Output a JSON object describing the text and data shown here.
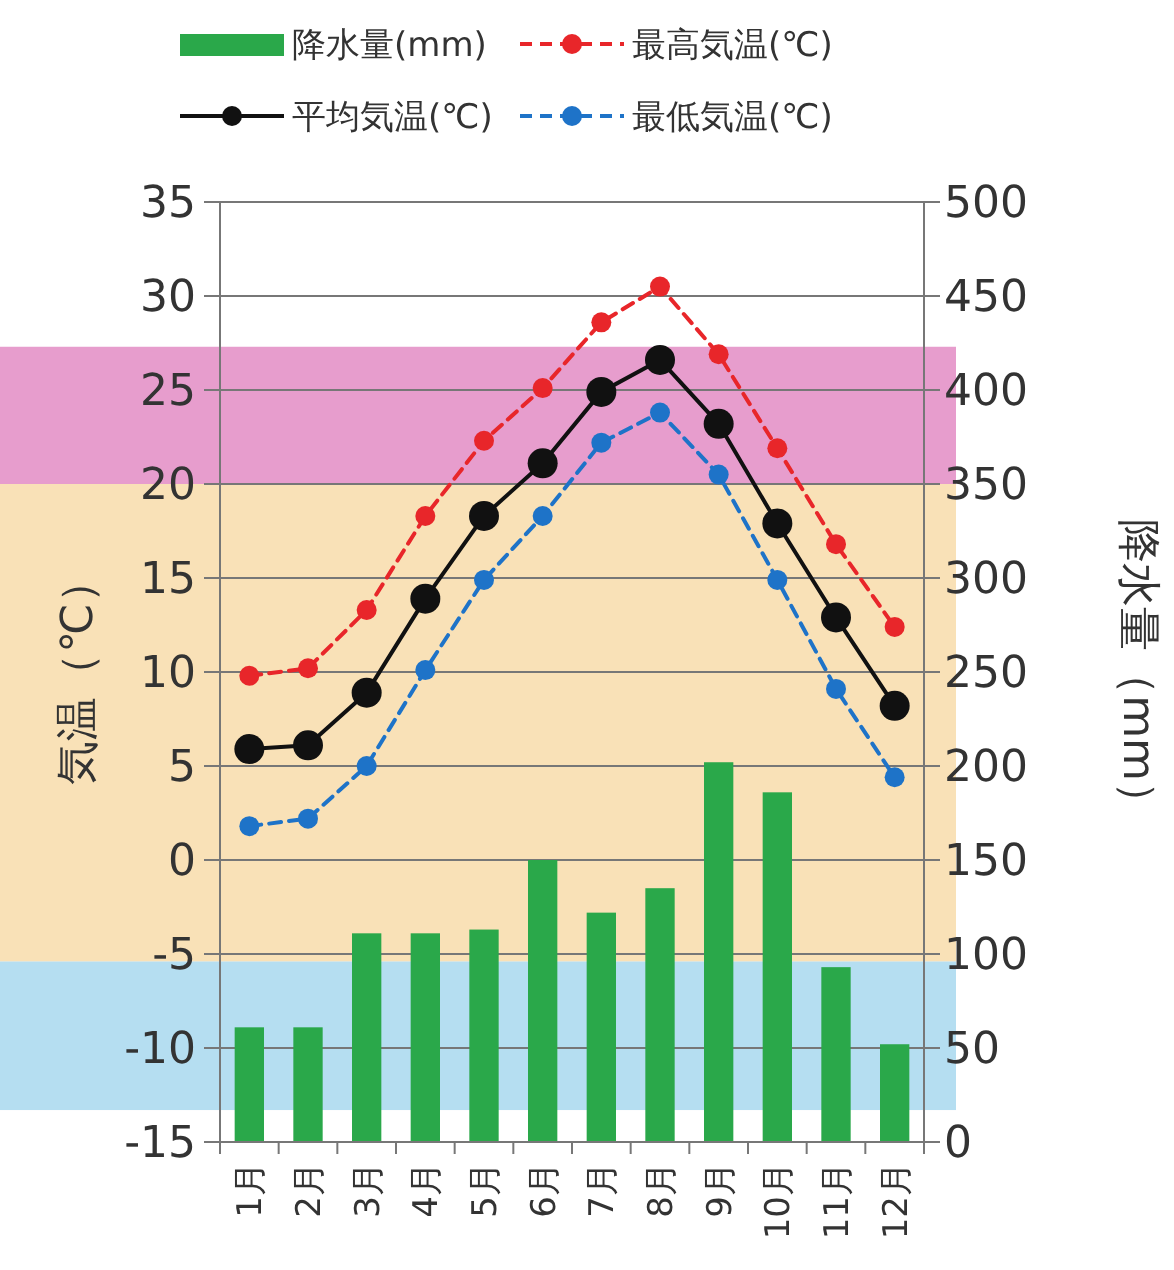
{
  "chart_data": {
    "type": "bar",
    "categories": [
      "1月",
      "2月",
      "3月",
      "4月",
      "5月",
      "6月",
      "7月",
      "8月",
      "9月",
      "10月",
      "11月",
      "12月"
    ],
    "ylabel": "気温（℃）",
    "y2label": "降水量（mm）",
    "ylim": [
      -15,
      35
    ],
    "yticks": [
      -15,
      -10,
      -5,
      0,
      5,
      10,
      15,
      20,
      25,
      30,
      35
    ],
    "y2lim": [
      0,
      500
    ],
    "y2ticks": [
      0,
      50,
      100,
      150,
      200,
      250,
      300,
      350,
      400,
      450,
      500
    ],
    "grid": "y",
    "legend": "top",
    "marker": "circle",
    "bands": [
      {
        "axis": "y",
        "from": 20,
        "to": 27.3,
        "color": "#e38cc4"
      },
      {
        "axis": "y",
        "from": -5.4,
        "to": 20,
        "color": "#f8dcaa"
      },
      {
        "axis": "y",
        "from": -13.3,
        "to": -5.4,
        "color": "#a8d8ee"
      }
    ],
    "series": [
      {
        "name": "降水量(mm)",
        "axis": "y2",
        "color": "#2aa84a",
        "values": [
          61,
          61,
          111,
          111,
          113,
          150,
          122,
          135,
          202,
          186,
          93,
          52
        ]
      },
      {
        "name": "最高気温(℃)",
        "type": "line",
        "color": "#e8262a",
        "line_style": "dashed",
        "values": [
          9.8,
          10.2,
          13.3,
          18.3,
          22.3,
          25.1,
          28.6,
          30.5,
          26.9,
          21.9,
          16.8,
          12.4
        ]
      },
      {
        "name": "平均気温(℃)",
        "type": "line",
        "color": "#111111",
        "line_style": "solid",
        "values": [
          5.9,
          6.1,
          8.9,
          13.9,
          18.3,
          21.1,
          24.9,
          26.6,
          23.2,
          17.9,
          12.9,
          8.2
        ]
      },
      {
        "name": "最低気温(℃)",
        "type": "line",
        "color": "#1e73c8",
        "line_style": "dashed",
        "values": [
          1.8,
          2.2,
          5.0,
          10.1,
          14.9,
          18.3,
          22.2,
          23.8,
          20.5,
          14.9,
          9.1,
          4.4
        ]
      }
    ]
  }
}
